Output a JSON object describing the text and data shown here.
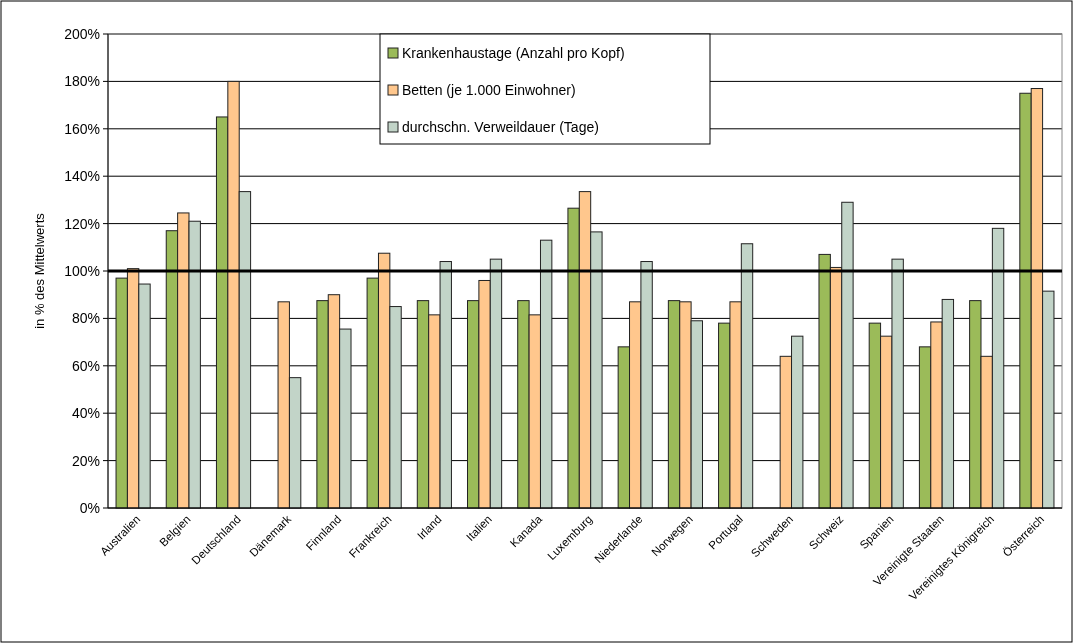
{
  "chart_data": {
    "type": "bar",
    "ylabel": "in % des Mittelwerts",
    "categories": [
      "Australien",
      "Belgien",
      "Deutschland",
      "Dänemark",
      "Finnland",
      "Frankreich",
      "Irland",
      "Italien",
      "Kanada",
      "Luxemburg",
      "Niederlande",
      "Norwegen",
      "Portugal",
      "Schweden",
      "Schweiz",
      "Spanien",
      "Vereinigte Staaten",
      "Vereinigtes Königreich",
      "Österreich"
    ],
    "series": [
      {
        "name": "Krankenhaustage (Anzahl pro Kopf)",
        "color": "#9bbb59",
        "values": [
          97,
          117,
          165,
          null,
          87.5,
          97,
          87.5,
          87.5,
          87.5,
          126.5,
          68,
          87.5,
          78,
          null,
          107,
          78,
          68,
          87.5,
          175
        ]
      },
      {
        "name": "Betten (je 1.000 Einwohner)",
        "color": "#ffc78d",
        "values": [
          101,
          124.5,
          180,
          87,
          90,
          107.5,
          81.5,
          96,
          81.5,
          133.5,
          87,
          87,
          87,
          64,
          101.5,
          72.5,
          78.5,
          64,
          177
        ]
      },
      {
        "name": "durchschn. Verweildauer (Tage)",
        "color": "#c2d4c8",
        "values": [
          94.5,
          121,
          133.5,
          55,
          75.5,
          85,
          104,
          105,
          113,
          116.5,
          104,
          79,
          111.5,
          72.5,
          129,
          105,
          88,
          118,
          91.5
        ]
      }
    ],
    "ylim": [
      0,
      200
    ],
    "yticks": [
      {
        "value": 0,
        "label": "0%"
      },
      {
        "value": 20,
        "label": "20%"
      },
      {
        "value": 40,
        "label": "40%"
      },
      {
        "value": 60,
        "label": "60%"
      },
      {
        "value": 80,
        "label": "80%"
      },
      {
        "value": 100,
        "label": "100%"
      },
      {
        "value": 120,
        "label": "120%"
      },
      {
        "value": 140,
        "label": "140%"
      },
      {
        "value": 160,
        "label": "160%"
      },
      {
        "value": 180,
        "label": "180%"
      },
      {
        "value": 200,
        "label": "200%"
      }
    ],
    "grid": "y",
    "legend": "top",
    "ref_lines": [
      {
        "axis": "y",
        "value": 100,
        "color": "#000000"
      }
    ]
  }
}
